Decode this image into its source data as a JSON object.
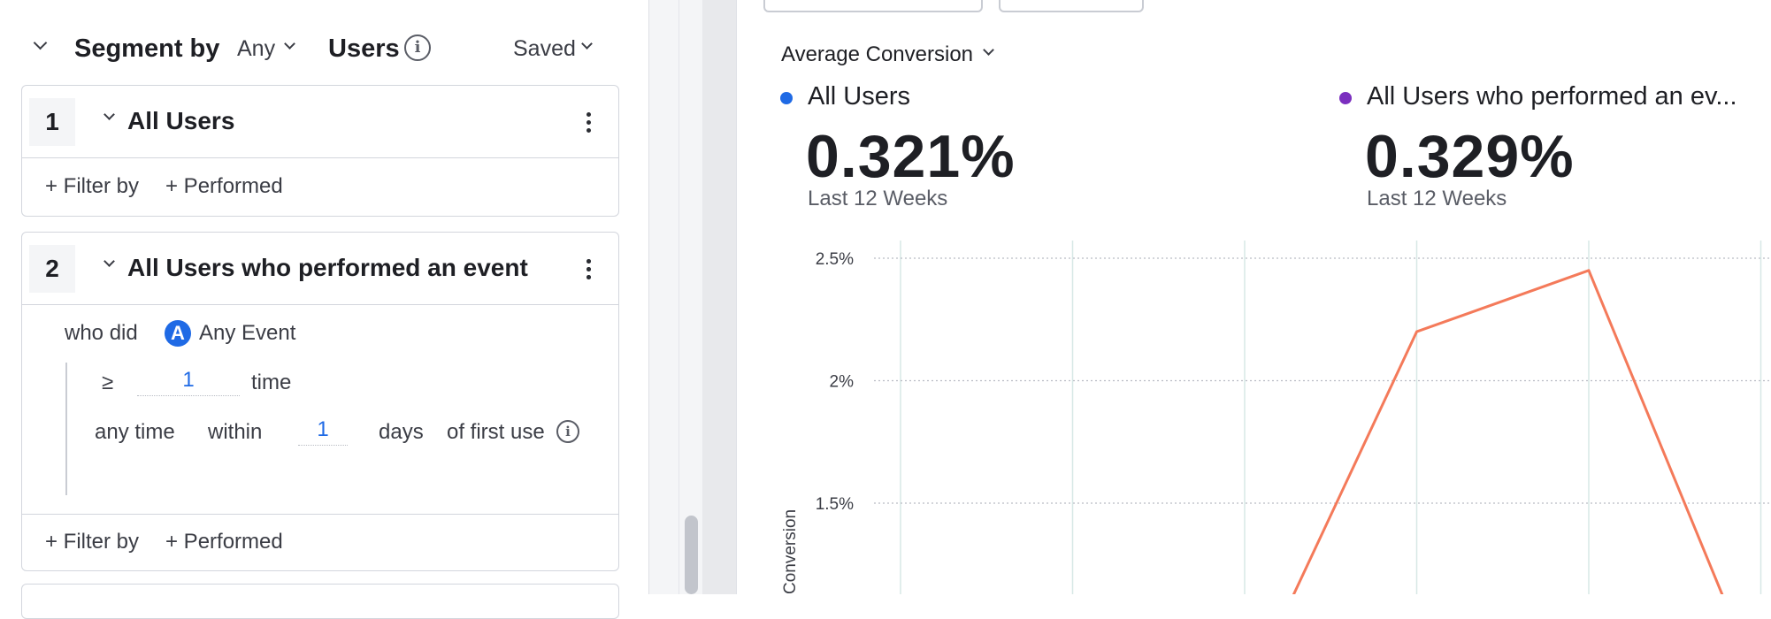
{
  "segment_panel": {
    "title": "Segment by",
    "match": "Any",
    "entity": "Users",
    "saved_label": "Saved",
    "segments": [
      {
        "number": "1",
        "name": "All Users",
        "filter_by": "+ Filter by",
        "performed": "+ Performed"
      },
      {
        "number": "2",
        "name": "All Users who performed an event",
        "who_did": "who did",
        "event_icon_glyph": "A",
        "event": "Any Event",
        "operator": "≥",
        "count": "1",
        "count_unit": "time",
        "time_scope": "any time",
        "within": "within",
        "within_value": "1",
        "within_unit": "days",
        "of_first_use": "of first use",
        "filter_by": "+ Filter by",
        "performed": "+ Performed"
      }
    ]
  },
  "metric_panel": {
    "metric_selector": "Average Conversion",
    "metrics": [
      {
        "name": "All Users",
        "value": "0.321%",
        "period": "Last 12 Weeks",
        "color": "#1f6ae5"
      },
      {
        "name": "All Users who performed an ev...",
        "value": "0.329%",
        "period": "Last 12 Weeks",
        "color": "#7b2fbf"
      }
    ]
  },
  "chart_data": {
    "type": "line",
    "ylabel": "Conversion",
    "y_ticks": [
      "2.5%",
      "2%",
      "1.5%"
    ],
    "y_tick_values": [
      2.5,
      2.0,
      1.5
    ],
    "x_index_visible": [
      0,
      1,
      2,
      3,
      4,
      5,
      6,
      7
    ],
    "series": [
      {
        "color": "#f47a5a",
        "points": [
          [
            2.2,
            1.0
          ],
          [
            3.0,
            2.2
          ],
          [
            4.0,
            2.45
          ],
          [
            4.85,
            1.0
          ]
        ]
      }
    ]
  }
}
